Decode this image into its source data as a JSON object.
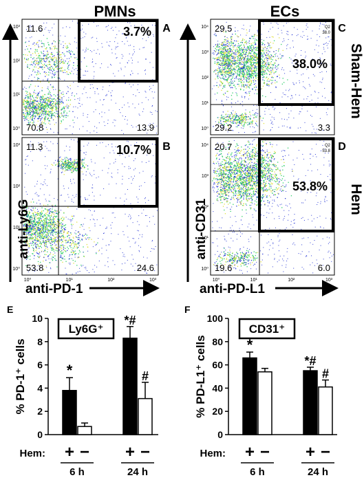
{
  "headers": {
    "left": "PMNs",
    "right": "ECs"
  },
  "flow_axes": {
    "left_y": "anti-Ly6G",
    "left_x": "anti-PD-1",
    "right_y": "anti-CD31",
    "right_x": "anti-PD-L1",
    "left_x_ticks": [
      "10⁰",
      "10¹",
      "10²",
      "10³"
    ],
    "left_y_ticks": [
      "10⁰",
      "10¹",
      "10²",
      "10³"
    ],
    "right_x_ticks": [
      "10⁰",
      "10¹",
      "10²",
      "10³"
    ],
    "right_y_ticks": [
      "10⁰",
      "10¹",
      "10²",
      "10³",
      "10⁴"
    ]
  },
  "side_labels": {
    "C": "Sham-Hem",
    "D": "Hem"
  },
  "dot_colors": {
    "sparse": "#2b3bd6",
    "dense": "#2fcf6a",
    "core": "#e0e040",
    "frame": "#000000"
  },
  "panels": {
    "A": {
      "letter": "A",
      "ul": "11.6",
      "ur": "3.7%",
      "ll": "70.8",
      "lr": "13.9",
      "q2": ""
    },
    "B": {
      "letter": "B",
      "ul": "11.3",
      "ur": "10.7%",
      "ll": "53.8",
      "lr": "24.6",
      "q2": ""
    },
    "C": {
      "letter": "C",
      "ul": "29.5",
      "ur": "38.0%",
      "ll": "29.2",
      "lr": "3.3",
      "q2": "Q2",
      "q2v": "38.0"
    },
    "D": {
      "letter": "D",
      "ul": "20.7",
      "ur": "53.8%",
      "ll": "19.6",
      "lr": "6.0",
      "q2": "Q2",
      "q2v": "53.8"
    }
  },
  "chart_data": [
    {
      "panel": "E",
      "type": "bar",
      "badge": "Ly6G⁺",
      "ylabel": "% PD-1⁺ cells",
      "ylim": [
        0,
        10
      ],
      "yticks": [
        0,
        2,
        4,
        6,
        8,
        10
      ],
      "hem_label": "Hem:",
      "groups": [
        {
          "label": "6 h",
          "bars": [
            {
              "sign": "+",
              "value": 3.8,
              "err": 1.1,
              "fill": "black",
              "mark": "*"
            },
            {
              "sign": "−",
              "value": 0.7,
              "err": 0.3,
              "fill": "white",
              "mark": ""
            }
          ]
        },
        {
          "label": "24 h",
          "bars": [
            {
              "sign": "+",
              "value": 8.3,
              "err": 1.0,
              "fill": "black",
              "mark": "*#"
            },
            {
              "sign": "−",
              "value": 3.1,
              "err": 1.4,
              "fill": "white",
              "mark": "#"
            }
          ]
        }
      ]
    },
    {
      "panel": "F",
      "type": "bar",
      "badge": "CD31⁺",
      "ylabel": "% PD-L1⁺ cells",
      "ylim": [
        0,
        100
      ],
      "yticks": [
        0,
        20,
        40,
        60,
        80,
        100
      ],
      "hem_label": "Hem:",
      "groups": [
        {
          "label": "6 h",
          "bars": [
            {
              "sign": "+",
              "value": 66,
              "err": 5,
              "fill": "black",
              "mark": "*"
            },
            {
              "sign": "−",
              "value": 54,
              "err": 3,
              "fill": "white",
              "mark": ""
            }
          ]
        },
        {
          "label": "24 h",
          "bars": [
            {
              "sign": "+",
              "value": 55,
              "err": 3,
              "fill": "black",
              "mark": "*#"
            },
            {
              "sign": "−",
              "value": 41,
              "err": 6,
              "fill": "white",
              "mark": "#"
            }
          ]
        }
      ]
    }
  ]
}
